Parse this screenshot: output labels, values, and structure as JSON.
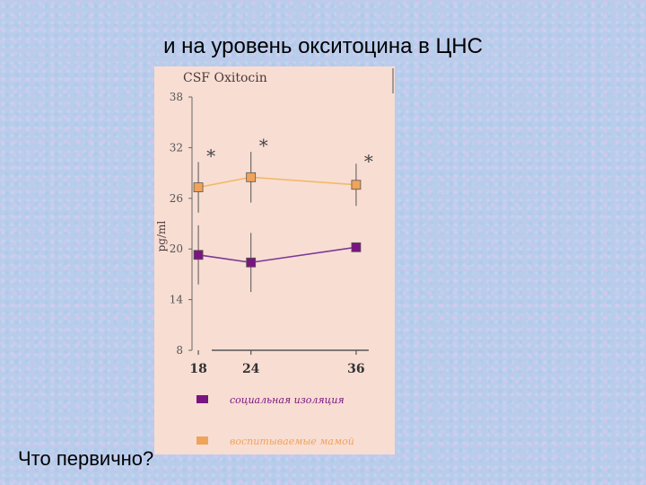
{
  "slide": {
    "title": "и на уровень окситоцина в ЦНС",
    "question": "Что первично?"
  },
  "chart_data": {
    "type": "line",
    "title": "CSF Oxitocin",
    "ylabel": "pg/ml",
    "xlabel": "",
    "x": [
      18,
      24,
      36
    ],
    "ylim": [
      8,
      38
    ],
    "yticks": [
      8,
      14,
      20,
      26,
      32,
      38
    ],
    "grid": false,
    "legend_position": "bottom",
    "series": [
      {
        "name": "воспитываемые мамой",
        "color": "#f0a35a",
        "line_color": "#f0bb66",
        "values": [
          27.3,
          28.5,
          27.6
        ],
        "error": [
          3,
          3,
          2.5
        ],
        "significance": [
          "*",
          "*",
          "*"
        ]
      },
      {
        "name": "социальная изоляция",
        "color": "#7a1580",
        "line_color": "#7a3a95",
        "values": [
          19.3,
          18.4,
          20.2
        ],
        "error": [
          3.5,
          3.5,
          0
        ],
        "significance": [
          "",
          "",
          ""
        ]
      }
    ]
  }
}
